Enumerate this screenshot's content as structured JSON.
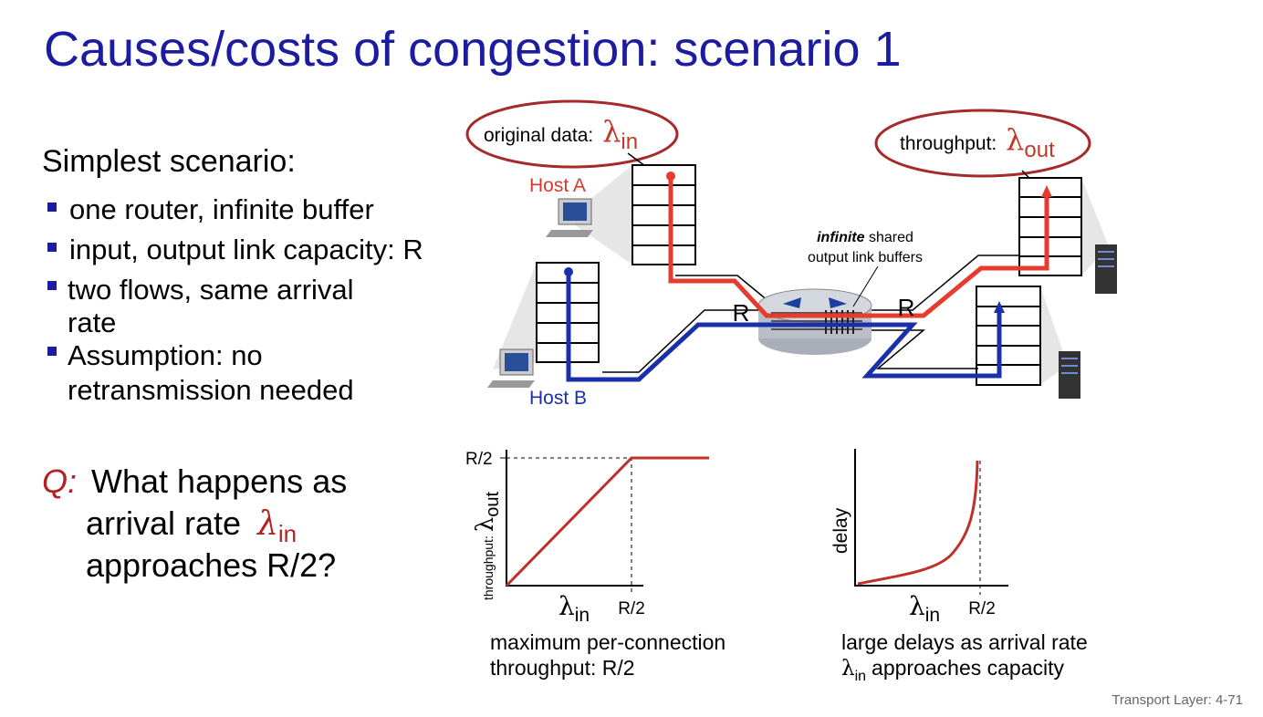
{
  "title": "Causes/costs of congestion: scenario 1",
  "left": {
    "heading": "Simplest scenario:",
    "bullets": [
      [
        "one router, infinite buffer"
      ],
      [
        "input, output link capacity: R"
      ],
      [
        "two flows, same arrival",
        "rate"
      ],
      [
        "Assumption: no",
        "retransmission needed"
      ]
    ]
  },
  "question": {
    "label": "Q:",
    "line1": "What happens as",
    "line2": "arrival rate",
    "lambda": {
      "symbol": "λ",
      "sub": "in"
    },
    "line3": "approaches R/2?"
  },
  "diagram": {
    "input_label": {
      "text": "original data:",
      "symbol": "λ",
      "sub": "in"
    },
    "output_label": {
      "text": "throughput:",
      "symbol": "λ",
      "sub": "out"
    },
    "host_a": "Host A",
    "host_b": "Host B",
    "buffer_label": {
      "emphasis": "infinite",
      "rest": "shared",
      "line2": "output link buffers"
    },
    "link_labels": [
      "R",
      "R"
    ]
  },
  "graphs": [
    {
      "y_tick": "R/2",
      "y_label": {
        "text": "throughput:",
        "symbol": "λ",
        "sub": "out"
      },
      "x_label": {
        "symbol": "λ",
        "sub": "in"
      },
      "x_tick": "R/2",
      "caption": [
        "maximum per-connection",
        "throughput: R/2"
      ]
    },
    {
      "y_label": "delay",
      "x_label": {
        "symbol": "λ",
        "sub": "in"
      },
      "x_tick": "R/2",
      "caption": {
        "line1": "large delays as arrival rate",
        "symbol": "λ",
        "sub": "in",
        "line2": "approaches capacity"
      }
    }
  ],
  "footer": "Transport Layer: 4-71"
}
